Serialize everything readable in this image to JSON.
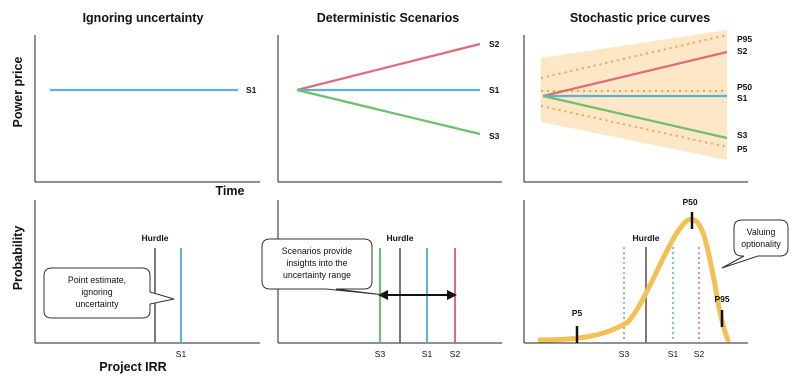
{
  "titles": {
    "panel1": "Ignoring uncertainty",
    "panel2": "Deterministic Scenarios",
    "panel3": "Stochastic price curves"
  },
  "axes": {
    "y_top": "Power price",
    "x_top": "Time",
    "y_bottom": "Probability",
    "x_bottom": "Project IRR"
  },
  "series_labels": {
    "s1": "S1",
    "s2": "S2",
    "s3": "S3",
    "p5": "P5",
    "p50": "P50",
    "p95": "P95",
    "hurdle": "Hurdle"
  },
  "callouts": {
    "point_estimate": [
      "Point estimate,",
      "ignoring",
      "uncertainty"
    ],
    "scenarios": [
      "Scenarios provide",
      "insights into the",
      "uncertainty range"
    ],
    "optionality": [
      "Valuing",
      "optionality"
    ]
  },
  "colors": {
    "s1": "#5ab4d2",
    "s2": "#e06a7c",
    "s3": "#6cbf6c",
    "hurdle": "#7a7a7a",
    "band": "#fde7c6",
    "band_dots": "#f3a24a",
    "distribution": "#f4bf55",
    "axis": "#222222"
  }
}
